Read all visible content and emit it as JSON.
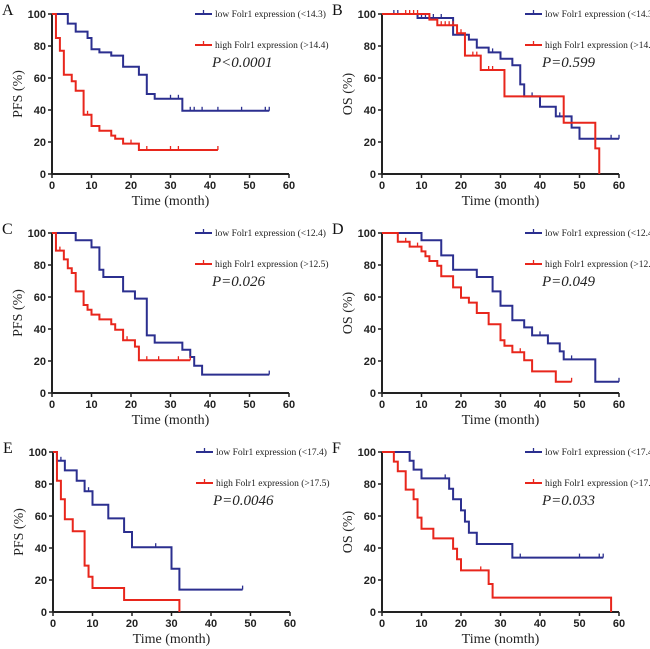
{
  "colors": {
    "low": "#2b2f8f",
    "high": "#e8261c"
  },
  "chart_data": [
    {
      "panel": "A",
      "type": "line",
      "xlabel": "Time (month)",
      "ylabel": "PFS (%)",
      "xlim": [
        0,
        60
      ],
      "ylim": [
        0,
        100
      ],
      "xticks": [
        0,
        10,
        20,
        30,
        40,
        50,
        60
      ],
      "yticks": [
        0,
        20,
        40,
        60,
        80,
        100
      ],
      "p_value": "P<0.0001",
      "series": [
        {
          "name": "low Folr1 expression (<14.3)",
          "color": "low",
          "end": 55,
          "steps": [
            [
              4,
              94
            ],
            [
              6,
              89
            ],
            [
              9,
              85
            ],
            [
              10,
              78
            ],
            [
              12,
              76
            ],
            [
              15,
              74
            ],
            [
              18,
              67
            ],
            [
              22,
              62
            ],
            [
              24,
              50
            ],
            [
              26,
              47
            ],
            [
              33,
              39.5
            ]
          ],
          "censored": [
            [
              30,
              47
            ],
            [
              32,
              47
            ],
            [
              35,
              39.5
            ],
            [
              36,
              39.5
            ],
            [
              38,
              39.5
            ],
            [
              42,
              39.5
            ],
            [
              48,
              39.5
            ],
            [
              54,
              39.5
            ],
            [
              55,
              39.5
            ]
          ]
        },
        {
          "name": "high Folr1 expression (>14.4)",
          "color": "high",
          "end": 42,
          "steps": [
            [
              1,
              85
            ],
            [
              2,
              77
            ],
            [
              3,
              62
            ],
            [
              5,
              58
            ],
            [
              6,
              52
            ],
            [
              8,
              37
            ],
            [
              10,
              30
            ],
            [
              12,
              27
            ],
            [
              15,
              24
            ],
            [
              16,
              22
            ],
            [
              18,
              19
            ],
            [
              22,
              15
            ]
          ],
          "censored": [
            [
              9,
              37
            ],
            [
              20,
              19
            ],
            [
              24,
              15
            ],
            [
              30,
              15
            ],
            [
              32,
              15
            ],
            [
              42,
              15
            ]
          ]
        }
      ]
    },
    {
      "panel": "B",
      "type": "line",
      "xlabel": "Time (month)",
      "ylabel": "OS (%)",
      "xlim": [
        0,
        60
      ],
      "ylim": [
        0,
        100
      ],
      "xticks": [
        0,
        10,
        20,
        30,
        40,
        50,
        60
      ],
      "yticks": [
        0,
        20,
        40,
        60,
        80,
        100
      ],
      "p_value": "P=0.599",
      "series": [
        {
          "name": "low Folr1 expression (<14.3)",
          "color": "low",
          "end": 60,
          "steps": [
            [
              9,
              97.5
            ],
            [
              18,
              87
            ],
            [
              22,
              84
            ],
            [
              24,
              79
            ],
            [
              27,
              76
            ],
            [
              30,
              72
            ],
            [
              33,
              68
            ],
            [
              35,
              56
            ],
            [
              36,
              48.5
            ],
            [
              40,
              42
            ],
            [
              44,
              36
            ],
            [
              48,
              29
            ],
            [
              50,
              22
            ]
          ],
          "censored": [
            [
              3,
              100
            ],
            [
              4,
              100
            ],
            [
              10,
              97.5
            ],
            [
              11,
              97.5
            ],
            [
              13,
              97.5
            ],
            [
              15,
              97.5
            ],
            [
              28,
              76
            ],
            [
              38,
              48.5
            ],
            [
              45,
              36
            ],
            [
              58,
              22
            ],
            [
              60,
              22
            ]
          ]
        },
        {
          "name": "high Folr1 expression (>14.4)",
          "color": "high",
          "end": 55,
          "steps": [
            [
              12,
              96.5
            ],
            [
              14,
              93
            ],
            [
              19,
              88
            ],
            [
              21,
              74
            ],
            [
              25,
              65
            ],
            [
              31,
              48.5
            ],
            [
              46,
              32
            ],
            [
              54,
              16
            ],
            [
              55,
              0
            ]
          ],
          "censored": [
            [
              6,
              100
            ],
            [
              7,
              100
            ],
            [
              8,
              100
            ],
            [
              9,
              100
            ],
            [
              15,
              93
            ],
            [
              16,
              93
            ],
            [
              17,
              93
            ],
            [
              18,
              93
            ],
            [
              20,
              88
            ],
            [
              23,
              74
            ],
            [
              24,
              74
            ],
            [
              27,
              65
            ],
            [
              28,
              65
            ]
          ]
        }
      ]
    },
    {
      "panel": "C",
      "type": "line",
      "xlabel": "Time (month)",
      "ylabel": "PFS (%)",
      "xlim": [
        0,
        60
      ],
      "ylim": [
        0,
        100
      ],
      "xticks": [
        0,
        10,
        20,
        30,
        40,
        50,
        60
      ],
      "yticks": [
        0,
        20,
        40,
        60,
        80,
        100
      ],
      "p_value": "P=0.026",
      "series": [
        {
          "name": "low Folr1 expression (<12.4)",
          "color": "low",
          "end": 55,
          "steps": [
            [
              6,
              95.5
            ],
            [
              10,
              91
            ],
            [
              12,
              77
            ],
            [
              13,
              72.5
            ],
            [
              18,
              63.5
            ],
            [
              21,
              59
            ],
            [
              24,
              36
            ],
            [
              26,
              31.5
            ],
            [
              33,
              27
            ],
            [
              35,
              22.5
            ],
            [
              36,
              17
            ],
            [
              38,
              11.5
            ]
          ],
          "censored": [
            [
              55,
              11.5
            ]
          ]
        },
        {
          "name": "high Folr1 expression (>12.5)",
          "color": "high",
          "end": 35,
          "steps": [
            [
              1,
              89
            ],
            [
              3,
              83.5
            ],
            [
              4,
              78
            ],
            [
              5,
              75
            ],
            [
              6,
              63.5
            ],
            [
              8,
              55
            ],
            [
              9,
              52
            ],
            [
              10,
              49
            ],
            [
              12,
              46
            ],
            [
              15,
              43
            ],
            [
              16,
              39.5
            ],
            [
              18,
              33
            ],
            [
              21,
              29
            ],
            [
              22,
              20.5
            ]
          ],
          "censored": [
            [
              2,
              89
            ],
            [
              19,
              33
            ],
            [
              24,
              20.5
            ],
            [
              27,
              20.5
            ],
            [
              32,
              20.5
            ],
            [
              35,
              20.5
            ]
          ]
        }
      ]
    },
    {
      "panel": "D",
      "type": "line",
      "xlabel": "Time (month)",
      "ylabel": "OS (%)",
      "xlim": [
        0,
        60
      ],
      "ylim": [
        0,
        100
      ],
      "xticks": [
        0,
        10,
        20,
        30,
        40,
        50,
        60
      ],
      "yticks": [
        0,
        20,
        40,
        60,
        80,
        100
      ],
      "p_value": "P=0.049",
      "series": [
        {
          "name": "low Folr1 expression (<12.4)",
          "color": "low",
          "end": 60,
          "steps": [
            [
              10,
              95.5
            ],
            [
              15,
              86
            ],
            [
              18,
              77
            ],
            [
              24,
              72.5
            ],
            [
              28,
              63.5
            ],
            [
              30,
              54.5
            ],
            [
              33,
              45.5
            ],
            [
              36,
              41
            ],
            [
              38,
              36
            ],
            [
              42,
              31
            ],
            [
              45,
              26
            ],
            [
              46,
              21
            ],
            [
              54,
              7
            ]
          ],
          "censored": [
            [
              40,
              36
            ],
            [
              48,
              21
            ],
            [
              60,
              7
            ]
          ]
        },
        {
          "name": "high Folr1 expression (>12.5)",
          "color": "high",
          "end": 48,
          "steps": [
            [
              4,
              94.5
            ],
            [
              7,
              91.5
            ],
            [
              10,
              88.5
            ],
            [
              11,
              85.5
            ],
            [
              12,
              82.5
            ],
            [
              14,
              79.5
            ],
            [
              15,
              73
            ],
            [
              18,
              66
            ],
            [
              20,
              59.5
            ],
            [
              22,
              56.5
            ],
            [
              24,
              50
            ],
            [
              27,
              43
            ],
            [
              30,
              33
            ],
            [
              31,
              29.5
            ],
            [
              33,
              25.5
            ],
            [
              36,
              20.5
            ],
            [
              38,
              13.5
            ],
            [
              44,
              7
            ]
          ],
          "censored": [
            [
              6,
              94.5
            ],
            [
              9,
              91.5
            ],
            [
              35,
              25.5
            ],
            [
              48,
              7
            ]
          ]
        }
      ]
    },
    {
      "panel": "E",
      "type": "line",
      "xlabel": "Time (month)",
      "ylabel": "PFS (%)",
      "xlim": [
        0,
        60
      ],
      "ylim": [
        0,
        100
      ],
      "xticks": [
        0,
        10,
        20,
        30,
        40,
        50,
        60
      ],
      "yticks": [
        0,
        20,
        40,
        60,
        80,
        100
      ],
      "p_value": "P=0.0046",
      "series": [
        {
          "name": "low Folr1 expression (<17.4)",
          "color": "low",
          "end": 48,
          "steps": [
            [
              1,
              94.5
            ],
            [
              3,
              88.5
            ],
            [
              6,
              82
            ],
            [
              8,
              75.5
            ],
            [
              10,
              67
            ],
            [
              14,
              58.5
            ],
            [
              18,
              50
            ],
            [
              20,
              40.5
            ],
            [
              30,
              27
            ],
            [
              32,
              14
            ]
          ],
          "censored": [
            [
              2,
              94.5
            ],
            [
              9,
              75.5
            ],
            [
              26,
              40.5
            ],
            [
              48,
              14
            ]
          ]
        },
        {
          "name": "high Folr1 expression (>17.5)",
          "color": "high",
          "end": 32,
          "steps": [
            [
              1,
              82
            ],
            [
              2,
              70.5
            ],
            [
              3,
              58
            ],
            [
              5,
              50.5
            ],
            [
              8,
              29
            ],
            [
              9,
              22
            ],
            [
              10,
              15
            ],
            [
              18,
              7.5
            ],
            [
              32,
              0
            ]
          ],
          "censored": []
        }
      ]
    },
    {
      "panel": "F",
      "type": "line",
      "xlabel": "Time (nomth)",
      "ylabel": "OS (%)",
      "xlim": [
        0,
        60
      ],
      "ylim": [
        0,
        100
      ],
      "xticks": [
        0,
        10,
        20,
        30,
        40,
        50,
        60
      ],
      "yticks": [
        0,
        20,
        40,
        60,
        80,
        100
      ],
      "p_value": "P=0.033",
      "series": [
        {
          "name": "low Folr1 expression (<17.4)",
          "color": "low",
          "end": 56,
          "steps": [
            [
              7,
              94.5
            ],
            [
              8,
              89
            ],
            [
              10,
              83.5
            ],
            [
              17,
              77
            ],
            [
              18,
              70.5
            ],
            [
              20,
              63.5
            ],
            [
              21,
              56.5
            ],
            [
              22,
              49.5
            ],
            [
              24,
              42.5
            ],
            [
              33,
              34
            ]
          ],
          "censored": [
            [
              16,
              83.5
            ],
            [
              35,
              34
            ],
            [
              50,
              34
            ],
            [
              55,
              34
            ],
            [
              56,
              34
            ]
          ]
        },
        {
          "name": "high Folr1 expression (>17.5)",
          "color": "high",
          "end": 58,
          "steps": [
            [
              3,
              94
            ],
            [
              4,
              88
            ],
            [
              6,
              76.5
            ],
            [
              8,
              70.5
            ],
            [
              9,
              59
            ],
            [
              10,
              52
            ],
            [
              13,
              46
            ],
            [
              18,
              39.5
            ],
            [
              19,
              33
            ],
            [
              20,
              26
            ],
            [
              27,
              17.5
            ],
            [
              28,
              9
            ],
            [
              58,
              0
            ]
          ],
          "censored": [
            [
              25,
              26
            ]
          ]
        }
      ]
    }
  ]
}
